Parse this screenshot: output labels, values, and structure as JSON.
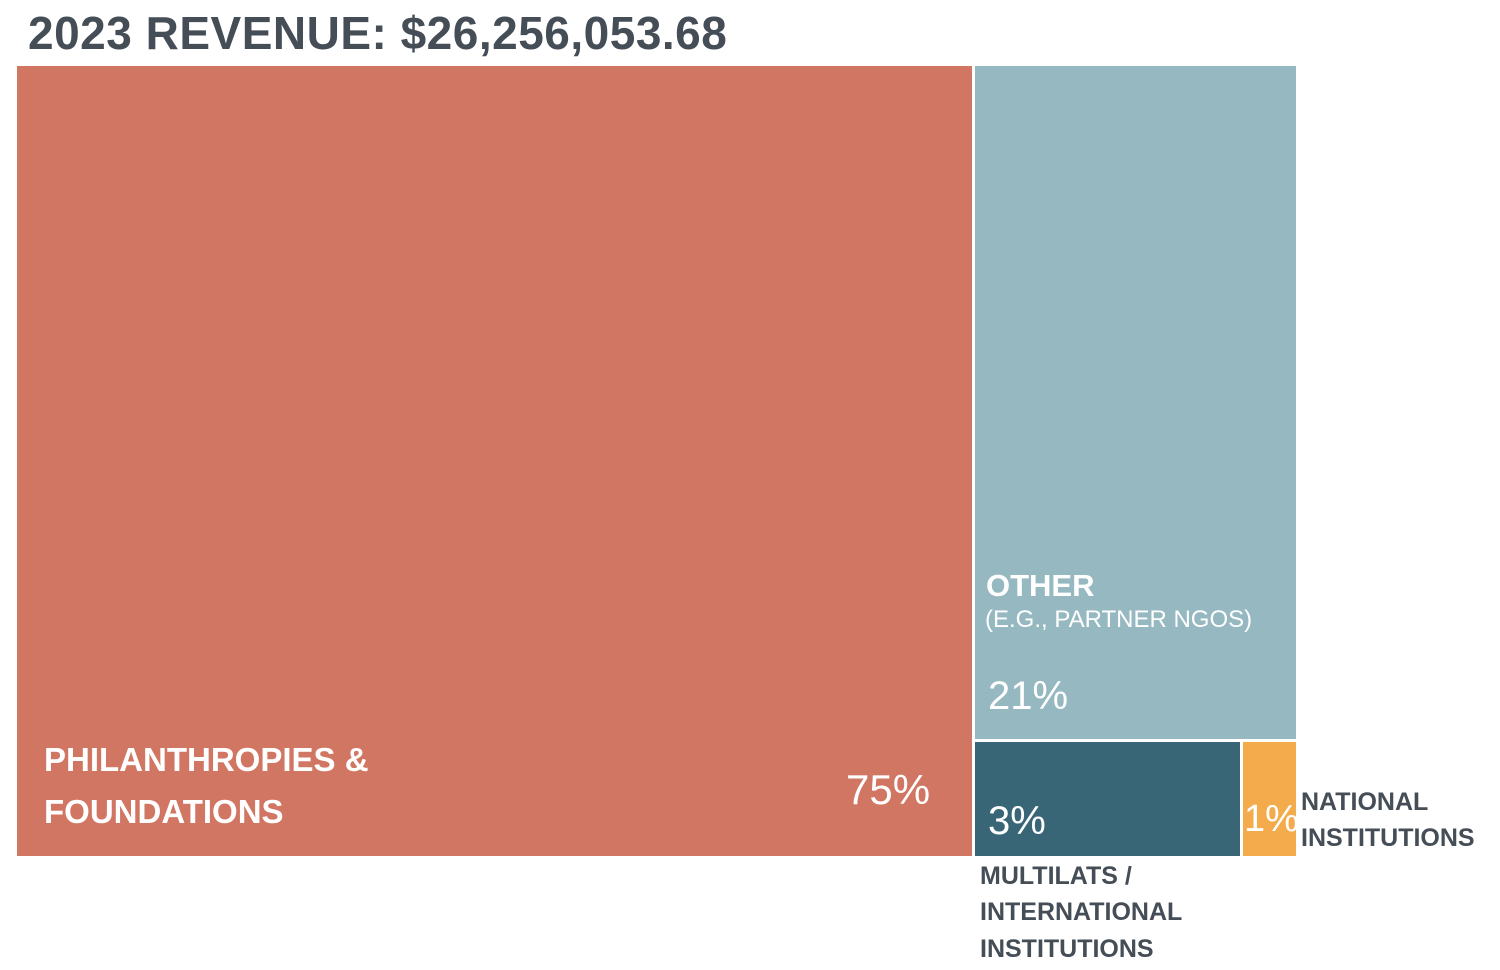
{
  "chart_data": {
    "type": "treemap",
    "title": "2023 REVENUE: $26,256,053.68",
    "segments": [
      {
        "name_lines": [
          "PHILANTHROPIES &",
          "FOUNDATIONS"
        ],
        "subtitle": "",
        "value": 75,
        "label": "75%",
        "color": "#d17663"
      },
      {
        "name_lines": [
          "OTHER"
        ],
        "subtitle": "(E.G., PARTNER NGOS)",
        "value": 21,
        "label": "21%",
        "color": "#95b8c1"
      },
      {
        "name_lines": [
          "MULTILATS /",
          "INTERNATIONAL",
          "INSTITUTIONS"
        ],
        "subtitle": "",
        "value": 3,
        "label": "3%",
        "color": "#386677"
      },
      {
        "name_lines": [
          "NATIONAL",
          "INSTITUTIONS"
        ],
        "subtitle": "",
        "value": 1,
        "label": "1%",
        "color": "#f4ab4b"
      }
    ]
  }
}
